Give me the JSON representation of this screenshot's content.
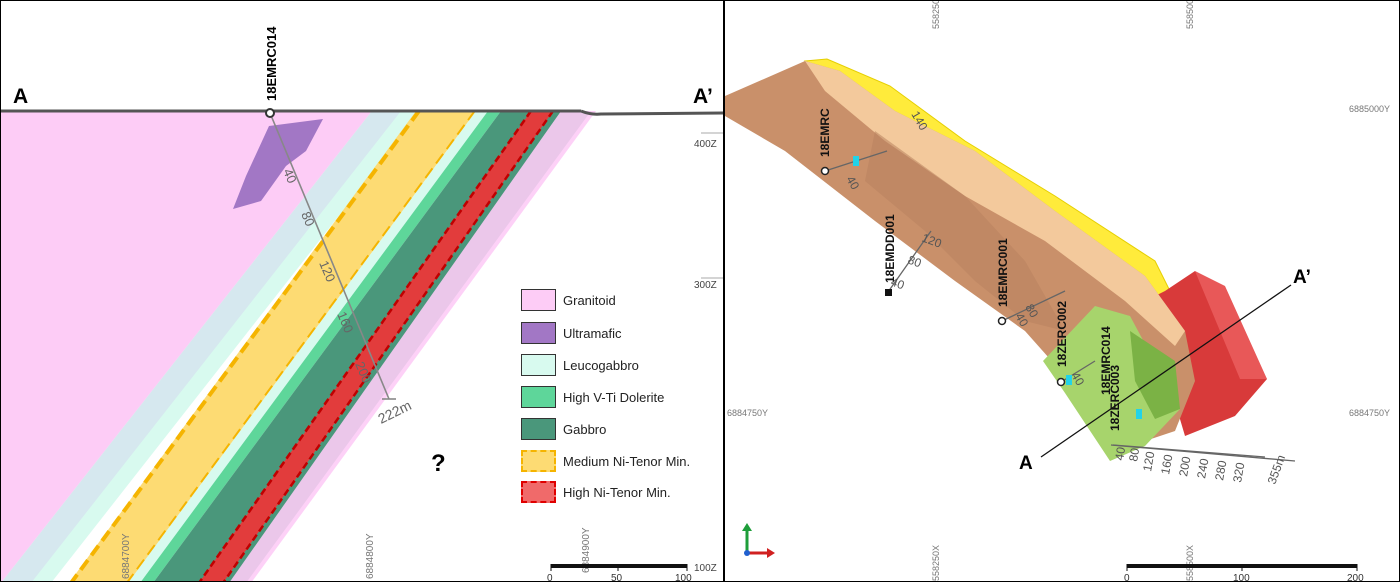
{
  "left": {
    "label_a": "A",
    "label_a_prime": "A’",
    "hole_name": "18EMRC014",
    "hole_depths": [
      "40",
      "80",
      "120",
      "160",
      "200"
    ],
    "hole_end": "222m",
    "question_mark": "?",
    "z_labels": [
      "400Z",
      "300Z",
      "100Z"
    ],
    "y_labels": [
      "6884700Y",
      "6884800Y",
      "6884900Y"
    ],
    "scale_ticks": [
      "0",
      "50",
      "100"
    ],
    "legend": [
      {
        "label": "Granitoid",
        "color": "#FDCCF6",
        "dashed": false
      },
      {
        "label": "Ultramafic",
        "color": "#A277C5",
        "dashed": false
      },
      {
        "label": "Leucogabbro",
        "color": "#D8FAEF",
        "dashed": false
      },
      {
        "label": "High V-Ti Dolerite",
        "color": "#5ED69A",
        "dashed": false
      },
      {
        "label": "Gabbro",
        "color": "#4A977B",
        "dashed": false
      },
      {
        "label": "Medium Ni-Tenor Min.",
        "color": "#FDDB73",
        "dashed": true,
        "dash_color": "#F5B400"
      },
      {
        "label": "High Ni-Tenor Min.",
        "color": "#F06A6A",
        "dashed": true,
        "dash_color": "#E00000"
      }
    ]
  },
  "right": {
    "x_labels": [
      "558250X",
      "558500X"
    ],
    "y_labels": [
      "6885000Y",
      "6884750Y"
    ],
    "label_a": "A",
    "label_a_prime": "A’",
    "holes": [
      "18EMRC",
      "18EMDD001",
      "18EMRC001",
      "18ZERC002",
      "18EMRC014",
      "18ZERC003"
    ],
    "depth_labels": [
      "140",
      "40",
      "80",
      "120",
      "40",
      "80",
      "40",
      "40",
      "40",
      "80",
      "120",
      "160",
      "200",
      "240",
      "280",
      "320"
    ],
    "hole_end": "355m",
    "scale_ticks": [
      "0",
      "100",
      "200"
    ]
  }
}
